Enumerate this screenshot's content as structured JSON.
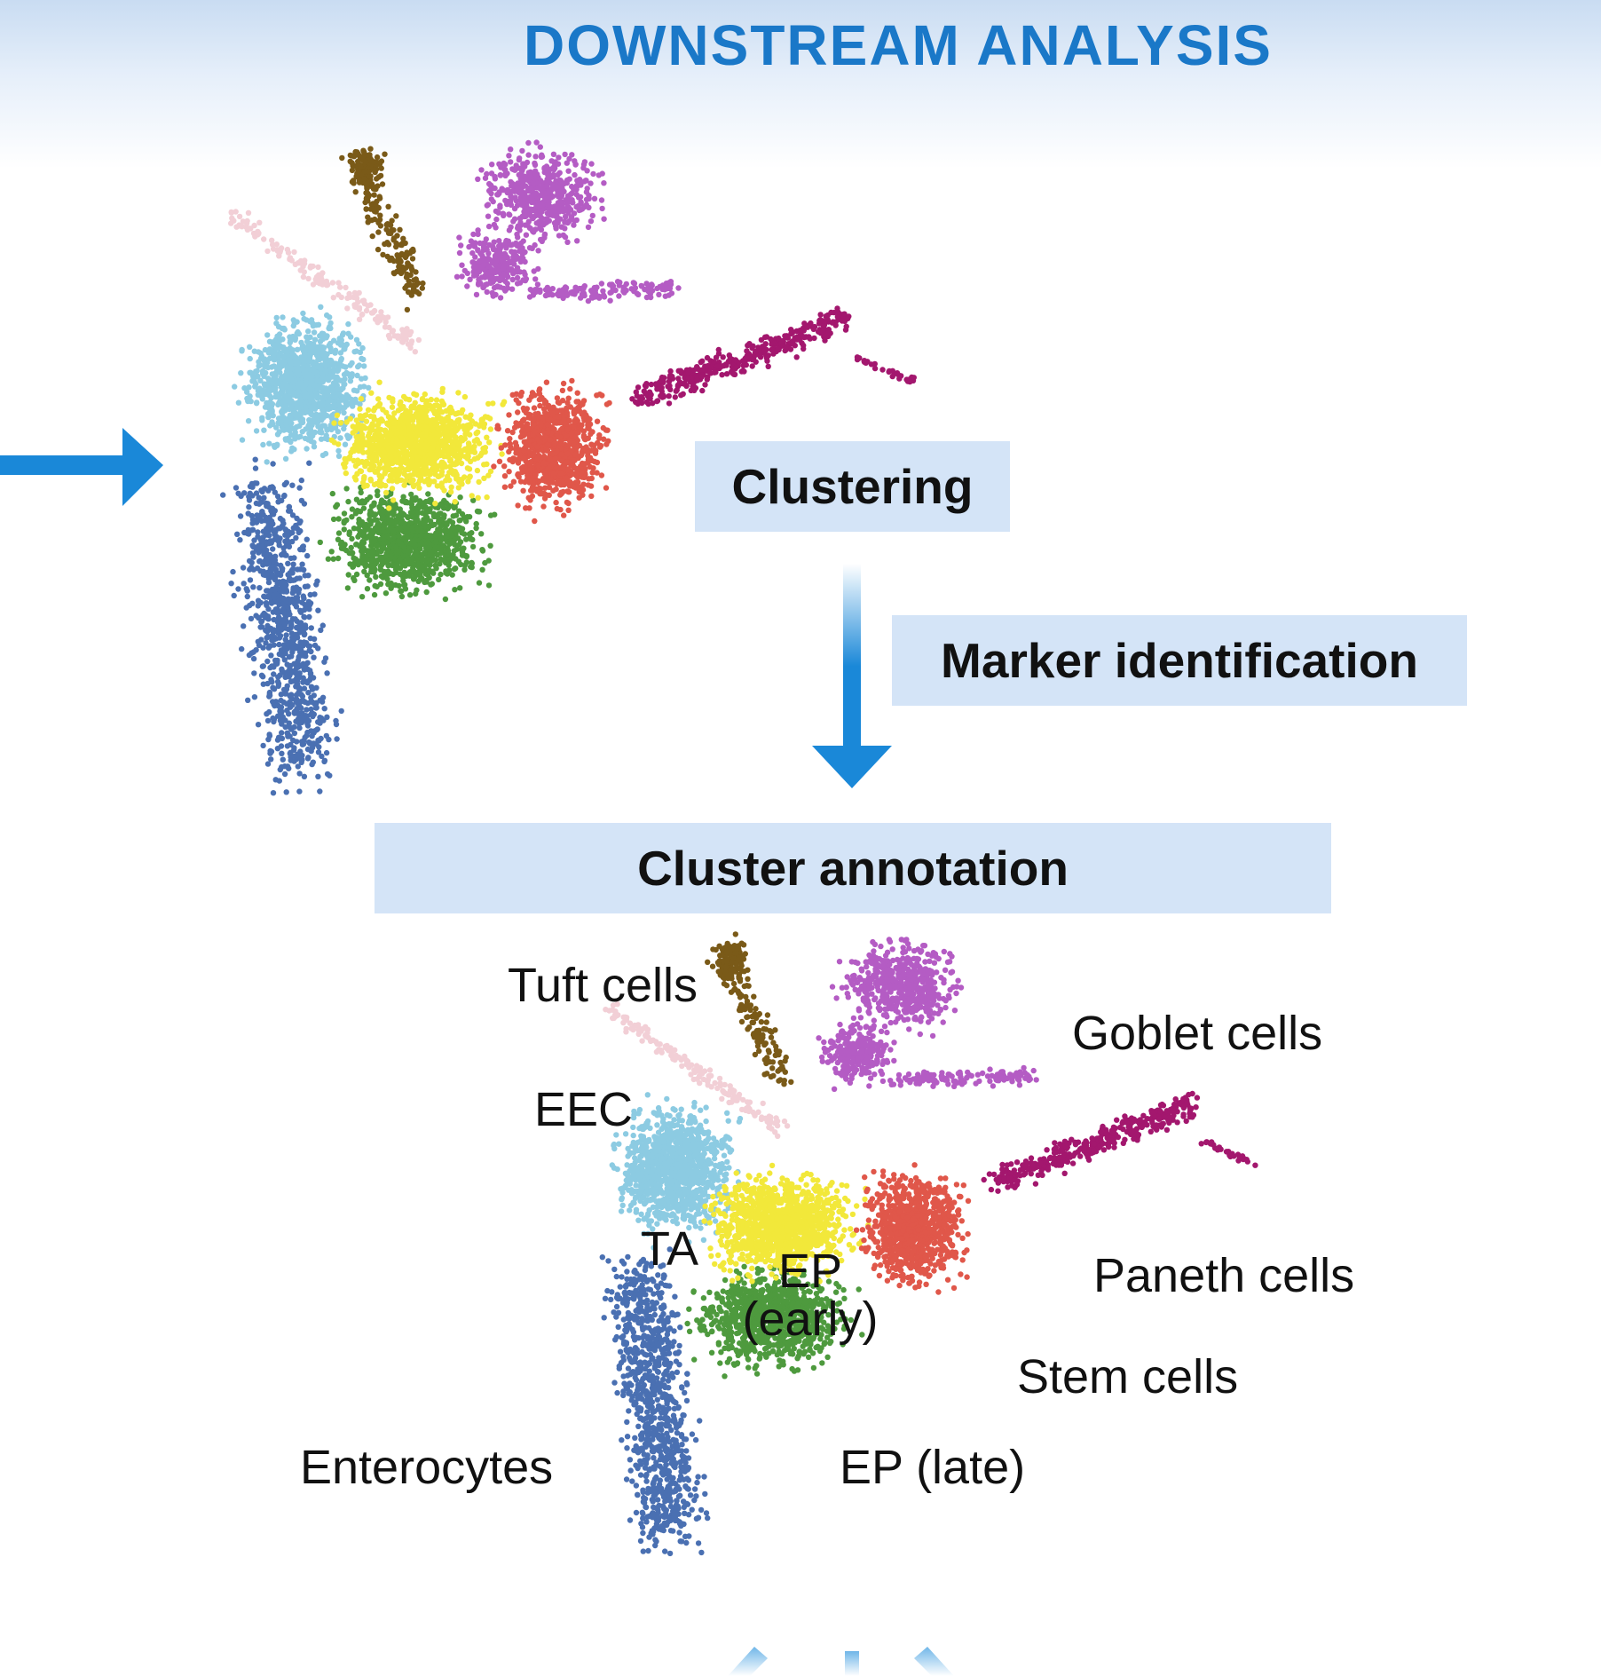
{
  "header": {
    "title": "DOWNSTREAM ANALYSIS"
  },
  "steps": {
    "clustering": "Clustering",
    "marker_identification": "Marker identification",
    "cluster_annotation": "Cluster annotation"
  },
  "annotation_labels": {
    "tuft": "Tuft cells",
    "goblet": "Goblet cells",
    "eec": "EEC",
    "ta": "TA",
    "ep_early_line1": "EP",
    "ep_early_line2": "(early)",
    "paneth": "Paneth cells",
    "stem": "Stem cells",
    "enterocytes": "Enterocytes",
    "ep_late": "EP (late)"
  },
  "colors": {
    "title": "#1a78c8",
    "arrow": "#1a88d8",
    "box": "#d4e4f7",
    "tuft": "#7a5a18",
    "goblet": "#b45cc4",
    "eec": "#f2cfd6",
    "paneth": "#a3176e",
    "ta": "#8ccbe2",
    "ep_early": "#f2e83a",
    "stem": "#e0574a",
    "ep_late": "#4e9a3e",
    "enterocytes": "#4a70b2"
  }
}
